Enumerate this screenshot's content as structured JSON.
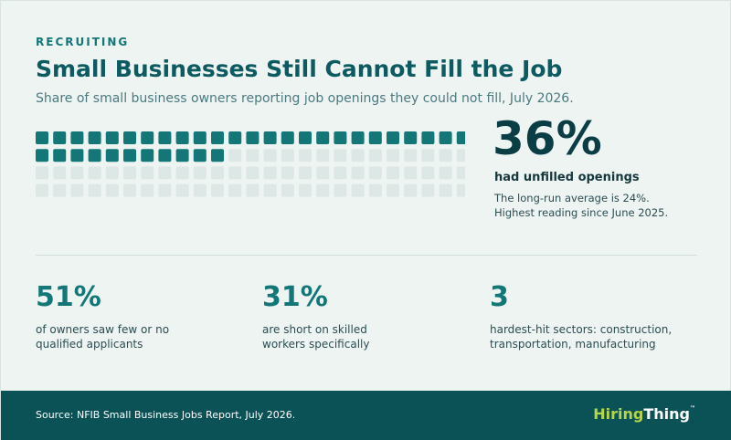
{
  "eyebrow": "RECRUITING",
  "title": "Small Businesses Still Cannot Fill the Job",
  "subtitle": "Share of small business owners reporting job openings they could not fill, July 2026.",
  "chart_data": {
    "type": "waffle",
    "total_units": 100,
    "filled_units": 36,
    "value_percent": 36,
    "colors": {
      "filled": "#137677",
      "empty": "#dde7e5"
    }
  },
  "headline": {
    "value": "36%",
    "label": "had unfilled openings",
    "note_line1": "The long-run average is 24%.",
    "note_line2": "Highest reading since June 2025."
  },
  "stats": [
    {
      "value": "51%",
      "text_line1": "of owners saw few or no",
      "text_line2": "qualified applicants"
    },
    {
      "value": "31%",
      "text_line1": "are short on skilled",
      "text_line2": "workers specifically"
    },
    {
      "value": "3",
      "text_line1": "hardest-hit sectors: construction,",
      "text_line2": "transportation, manufacturing"
    }
  ],
  "footer": {
    "source": "Source: NFIB Small Business Jobs Report, July 2026.",
    "logo_part1": "Hiring",
    "logo_part2": "Thing",
    "logo_tm": "™"
  }
}
